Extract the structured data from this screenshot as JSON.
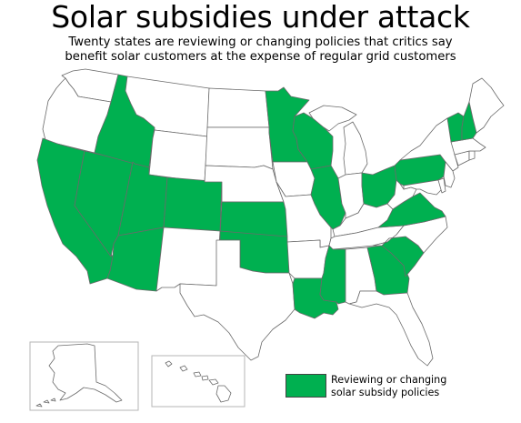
{
  "title": "Solar subsidies under attack",
  "subtitle_line1": "Twenty states are reviewing or changing policies that critics say",
  "subtitle_line2": "benefit solar customers at the expense of regular grid customers",
  "legend": {
    "line1": "Reviewing or changing",
    "line2": "solar subsidy policies",
    "color": "#00b050"
  },
  "colors": {
    "highlight": "#00b050",
    "base": "#ffffff",
    "border": "#6a6a6a"
  },
  "highlighted_states": [
    "CA",
    "NV",
    "AZ",
    "UT",
    "CO",
    "ID",
    "KS",
    "OK",
    "MN",
    "WI",
    "IL",
    "MS",
    "LA",
    "GA",
    "SC",
    "VA",
    "OH",
    "PA",
    "NH",
    "VT"
  ],
  "inset_states": [
    "AK",
    "HI"
  ]
}
